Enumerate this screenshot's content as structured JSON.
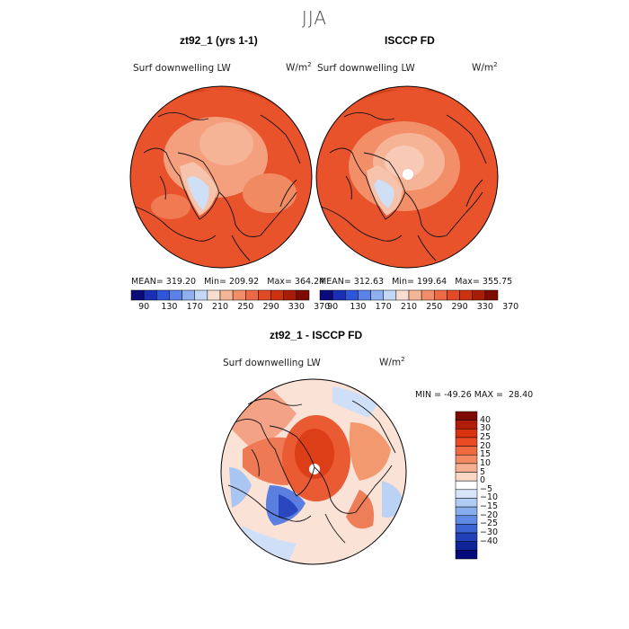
{
  "figure_title": "JJA",
  "top_panels": [
    {
      "title": "zt92_1 (yrs 1-1)",
      "variable": "Surf downwelling LW",
      "units_base": "W/m",
      "units_exp": "2",
      "stats": {
        "mean_label": "MEAN=",
        "mean": "319.20",
        "min_label": "Min=",
        "min": "209.92",
        "max_label": "Max=",
        "max": "364.24"
      }
    },
    {
      "title": "ISCCP FD",
      "variable": "Surf downwelling LW",
      "units_base": "W/m",
      "units_exp": "2",
      "stats": {
        "mean_label": "MEAN=",
        "mean": "312.63",
        "min_label": "Min=",
        "min": "199.64",
        "max_label": "Max=",
        "max": "355.75"
      }
    }
  ],
  "top_colorbar": {
    "colors": [
      "#0a0a7a",
      "#1a2fb5",
      "#2f55d8",
      "#5a82e8",
      "#8fb0f0",
      "#c2d6f6",
      "#f7ddd0",
      "#f5b697",
      "#f28e6a",
      "#ec6a45",
      "#e24a26",
      "#cc3210",
      "#a81d08",
      "#7e0b03"
    ],
    "tick_labels": [
      "90",
      "130",
      "170",
      "210",
      "250",
      "290",
      "330",
      "370"
    ]
  },
  "diff_panel": {
    "title": "zt92_1 - ISCCP FD",
    "variable": "Surf downwelling LW",
    "units_base": "W/m",
    "units_exp": "2",
    "stats": {
      "min_label": "MIN =",
      "min": "-49.26",
      "max_label": "MAX =",
      "max": "28.40"
    }
  },
  "diff_colorbar": {
    "colors": [
      "#7e0b03",
      "#b01c07",
      "#d8320f",
      "#ea4b22",
      "#f06a3f",
      "#f38a63",
      "#f7b08f",
      "#fad7c4",
      "#ffffff",
      "#d6e5fa",
      "#b0ccf4",
      "#86acec",
      "#5f89e2",
      "#3b63d2",
      "#2240b8",
      "#0f2498",
      "#050a7a"
    ],
    "tick_labels": [
      "40",
      "30",
      "25",
      "20",
      "15",
      "10",
      "5",
      "0",
      "-5",
      "-10",
      "-15",
      "-20",
      "-25",
      "-30",
      "-40"
    ]
  }
}
